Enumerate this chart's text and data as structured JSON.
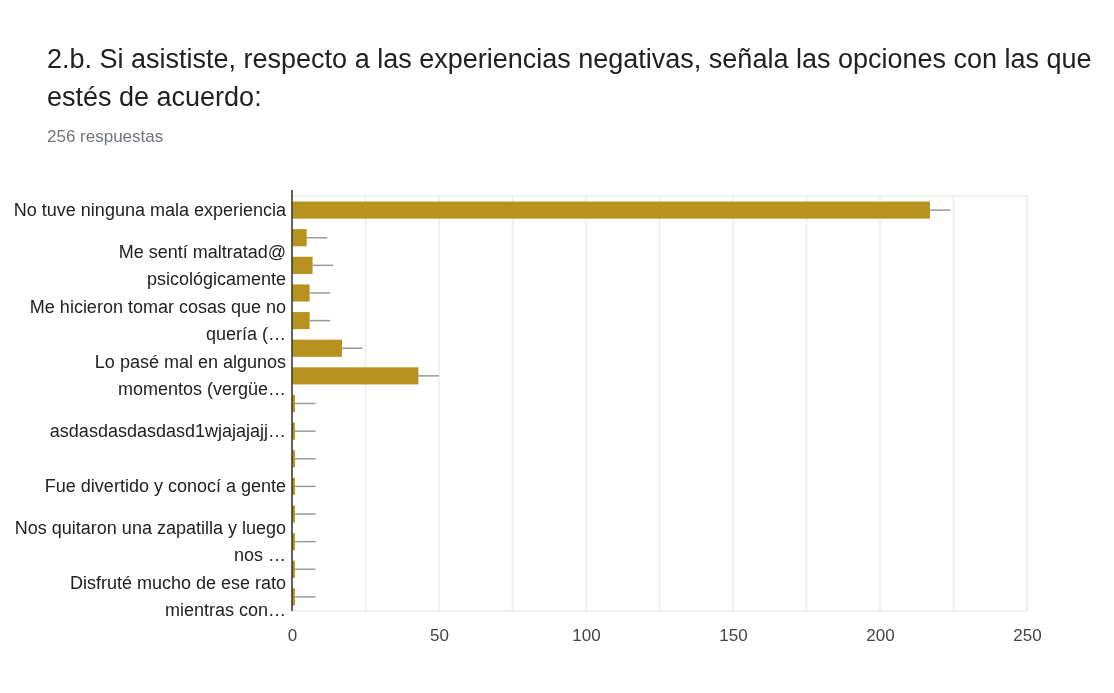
{
  "chart_data": {
    "type": "bar",
    "orientation": "horizontal",
    "title": "2.b. Si asististe, respecto a las experiencias negativas, señala las opciones con las que estés de acuerdo:",
    "subtitle": "256 respuestas",
    "categories": [
      "No tuve ninguna mala experiencia",
      null,
      "Me sentí maltratad@ psicológicamente",
      null,
      "Me hicieron tomar cosas que no quería (…",
      null,
      "Lo pasé mal en algunos momentos (vergüe…",
      null,
      "asdasdasdasdasd1wjajajajj…",
      null,
      "Fue divertido y conocí a gente",
      null,
      "Nos quitaron una zapatilla y luego nos …",
      null,
      "Disfruté mucho de ese rato mientras con…"
    ],
    "values": [
      217,
      5,
      7,
      6,
      6,
      17,
      43,
      1,
      1,
      1,
      1,
      1,
      1,
      1,
      1
    ],
    "errors": [
      [
        217,
        224
      ],
      [
        5,
        12
      ],
      [
        7,
        14
      ],
      [
        6,
        13
      ],
      [
        6,
        13
      ],
      [
        17,
        24
      ],
      [
        43,
        50
      ],
      [
        1,
        8
      ],
      [
        1,
        8
      ],
      [
        1,
        8
      ],
      [
        1,
        8
      ],
      [
        1,
        8
      ],
      [
        1,
        8
      ],
      [
        1,
        8
      ],
      [
        1,
        8
      ]
    ],
    "color": "#b8921f",
    "xlim": [
      0,
      250
    ],
    "xticks": [
      0,
      {
        "value": 25,
        "label": null
      },
      50,
      {
        "value": 75,
        "label": null
      },
      100,
      {
        "value": 125,
        "label": null
      },
      150,
      {
        "value": 175,
        "label": null
      },
      200,
      {
        "value": 225,
        "label": null
      },
      250
    ],
    "grid": "x"
  }
}
